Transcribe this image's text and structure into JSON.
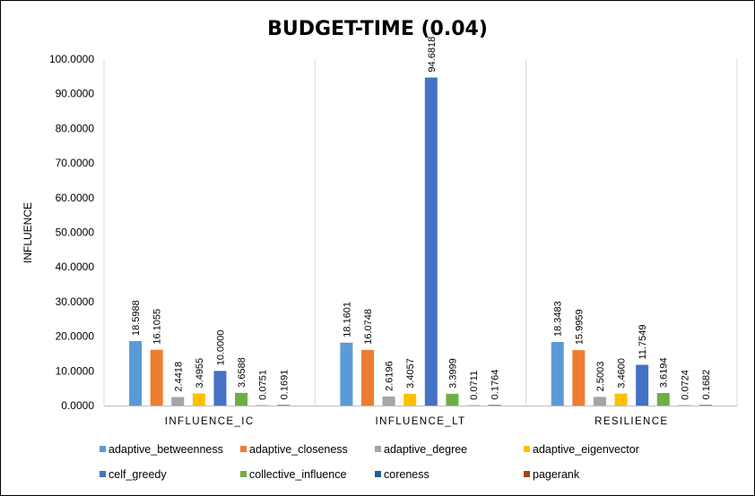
{
  "chart_data": {
    "type": "bar",
    "title": "BUDGET-TIME (0.04)",
    "xlabel": "",
    "ylabel": "INFLUENCE",
    "ylim": [
      0,
      100
    ],
    "yticks": [
      "0.0000",
      "10.0000",
      "20.0000",
      "30.0000",
      "40.0000",
      "50.0000",
      "60.0000",
      "70.0000",
      "80.0000",
      "90.0000",
      "100.0000"
    ],
    "grid": "vertical separators between categories",
    "legend_position": "bottom",
    "categories": [
      "INFLUENCE_IC",
      "INFLUENCE_LT",
      "RESILIENCE"
    ],
    "series": [
      {
        "name": "adaptive_betweenness",
        "color": "#5B9BD5",
        "values": [
          18.5988,
          18.1601,
          18.3483
        ],
        "labels": [
          "18.5988",
          "18.1601",
          "18.3483"
        ]
      },
      {
        "name": "adaptive_closeness",
        "color": "#ED7D31",
        "values": [
          16.1055,
          16.0748,
          15.9959
        ],
        "labels": [
          "16.1055",
          "16.0748",
          "15.9959"
        ]
      },
      {
        "name": "adaptive_degree",
        "color": "#A5A5A5",
        "values": [
          2.4418,
          2.6196,
          2.5003
        ],
        "labels": [
          "2.4418",
          "2.6196",
          "2.5003"
        ]
      },
      {
        "name": "adaptive_eigenvector",
        "color": "#FFC000",
        "values": [
          3.4955,
          3.4057,
          3.46
        ],
        "labels": [
          "3.4955",
          "3.4057",
          "3.4600"
        ]
      },
      {
        "name": "celf_greedy",
        "color": "#4472C4",
        "values": [
          10.0,
          94.6818,
          11.7549
        ],
        "labels": [
          "10.0000",
          "94.6818",
          "11.7549"
        ]
      },
      {
        "name": "collective_influence",
        "color": "#70AD47",
        "values": [
          3.6588,
          3.3999,
          3.6194
        ],
        "labels": [
          "3.6588",
          "3.3999",
          "3.6194"
        ]
      },
      {
        "name": "coreness",
        "color": "#255E91",
        "values": [
          0.0751,
          0.0711,
          0.0724
        ],
        "labels": [
          "0.0751",
          "0.0711",
          "0.0724"
        ]
      },
      {
        "name": "pagerank",
        "color": "#9E480E",
        "values": [
          0.1691,
          0.1764,
          0.1682
        ],
        "labels": [
          "0.1691",
          "0.1764",
          "0.1682"
        ]
      }
    ]
  }
}
